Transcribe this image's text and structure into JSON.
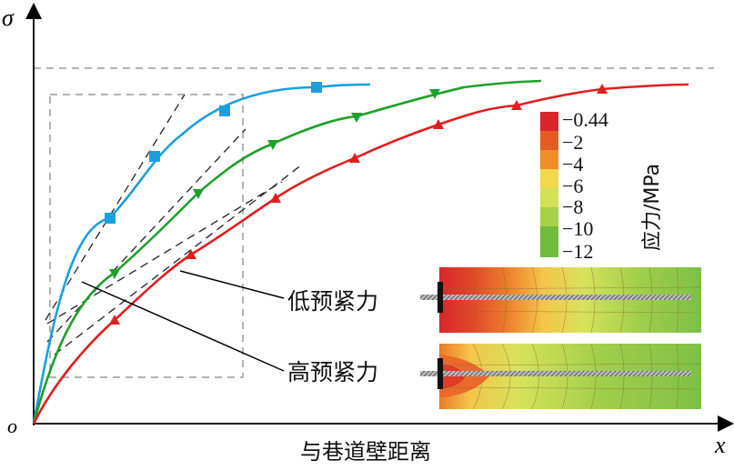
{
  "diagram": {
    "y_axis_label": "σ",
    "x_axis_label": "x",
    "origin_label": "o",
    "x_axis_title": "与巷道壁距离",
    "colors": {
      "blue": "#1a9fdf",
      "green": "#1ea02a",
      "red": "#de1f1f",
      "dashed": "#9a9a9a",
      "tangent": "#222222"
    },
    "markers": {
      "blue": "square",
      "green": "triangle-down",
      "red": "triangle-up"
    },
    "callouts": {
      "low": "低预紧力",
      "high": "高预紧力"
    },
    "colorbar": {
      "title": "应力/MPa",
      "ticks": [
        "−0.44",
        "−2",
        "−4",
        "−6",
        "−8",
        "−10",
        "−12"
      ],
      "colors": [
        "#d8262b",
        "#e65a24",
        "#f08c2a",
        "#f2d84a",
        "#d2e05a",
        "#a6cf4a",
        "#6fbb3e"
      ]
    }
  }
}
